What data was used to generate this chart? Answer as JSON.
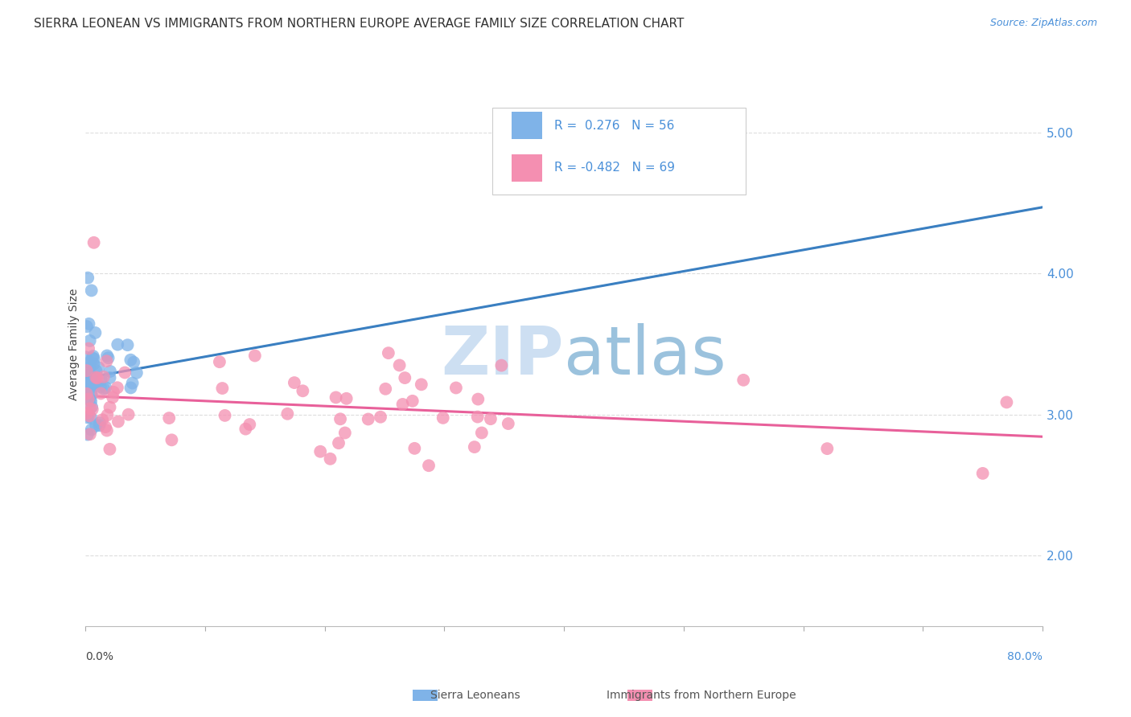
{
  "title": "SIERRA LEONEAN VS IMMIGRANTS FROM NORTHERN EUROPE AVERAGE FAMILY SIZE CORRELATION CHART",
  "source": "Source: ZipAtlas.com",
  "ylabel": "Average Family Size",
  "y_ticks_right": [
    2.0,
    3.0,
    4.0,
    5.0
  ],
  "y_ticks_right_labels": [
    "2.00",
    "3.00",
    "4.00",
    "5.00"
  ],
  "blue_color": "#7fb3e8",
  "pink_color": "#f48fb1",
  "blue_line_color": "#3a7fc1",
  "pink_line_color": "#e8609a",
  "dashed_line_color": "#a8cce8",
  "watermark_zip_color": "#c8ddf0",
  "watermark_atlas_color": "#8ab8d8",
  "background_color": "#ffffff",
  "grid_color": "#dddddd",
  "xlim": [
    0.0,
    0.8
  ],
  "ylim": [
    1.5,
    5.5
  ],
  "title_fontsize": 11,
  "axis_label_fontsize": 10,
  "tick_fontsize": 10,
  "legend_fontsize": 11
}
